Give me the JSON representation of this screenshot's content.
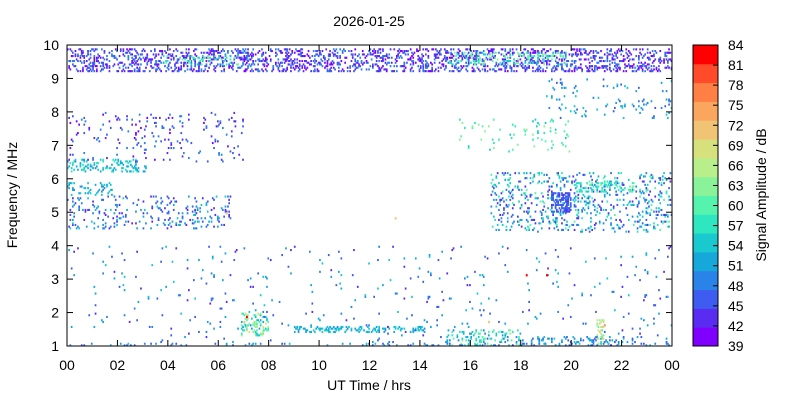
{
  "chart_data": {
    "type": "heatmap",
    "title": "2026-01-25",
    "xlabel": "UT Time / hrs",
    "ylabel": "Frequency / MHz",
    "colorbar_label": "Signal Amplitude / dB",
    "x_range": [
      0,
      24
    ],
    "y_range": [
      1,
      10
    ],
    "x_ticks": [
      "00",
      "02",
      "04",
      "06",
      "08",
      "10",
      "12",
      "14",
      "16",
      "18",
      "20",
      "22",
      "00"
    ],
    "y_ticks": [
      "1",
      "2",
      "3",
      "4",
      "5",
      "6",
      "7",
      "8",
      "9",
      "10"
    ],
    "colorbar_ticks": [
      "39",
      "42",
      "45",
      "48",
      "51",
      "54",
      "57",
      "60",
      "63",
      "66",
      "69",
      "72",
      "75",
      "78",
      "81",
      "84"
    ],
    "colorbar_range": [
      39,
      84
    ],
    "colors": [
      "#7f00ff",
      "#5a2cf2",
      "#3e5cf0",
      "#2a83e8",
      "#16a8db",
      "#1ac8d0",
      "#2ee6c0",
      "#55f3ad",
      "#8af39a",
      "#b8ef8a",
      "#d6e07c",
      "#f0c474",
      "#fba65e",
      "#ff7f44",
      "#ff4b2a",
      "#ff0000"
    ],
    "series": [
      {
        "band": [
          9.2,
          9.9
        ],
        "x": [
          0,
          24
        ],
        "density": 0.45,
        "db": [
          39,
          50
        ]
      },
      {
        "band": [
          9.4,
          9.7
        ],
        "x": [
          3.8,
          6.8
        ],
        "density": 0.25,
        "db": [
          55,
          62
        ]
      },
      {
        "band": [
          9.4,
          9.8
        ],
        "x": [
          15,
          19.8
        ],
        "density": 0.3,
        "db": [
          54,
          64
        ]
      },
      {
        "band": [
          6.2,
          6.6
        ],
        "x": [
          0,
          3.2
        ],
        "density": 0.35,
        "db": [
          50,
          58
        ]
      },
      {
        "band": [
          5.5,
          5.9
        ],
        "x": [
          0,
          1.8
        ],
        "density": 0.25,
        "db": [
          48,
          56
        ]
      },
      {
        "band": [
          4.5,
          5.5
        ],
        "x": [
          0,
          6.5
        ],
        "density": 0.18,
        "db": [
          42,
          54
        ]
      },
      {
        "band": [
          6.5,
          8
        ],
        "x": [
          0,
          7
        ],
        "density": 0.07,
        "db": [
          40,
          50
        ]
      },
      {
        "band": [
          4.4,
          6.2
        ],
        "x": [
          16.8,
          24
        ],
        "density": 0.22,
        "db": [
          42,
          60
        ]
      },
      {
        "band": [
          5,
          5.6
        ],
        "x": [
          19.2,
          20
        ],
        "density": 0.85,
        "db": [
          44,
          48
        ]
      },
      {
        "band": [
          5.6,
          5.9
        ],
        "x": [
          20.2,
          22.5
        ],
        "density": 0.4,
        "db": [
          55,
          62
        ]
      },
      {
        "band": [
          6.8,
          7.8
        ],
        "x": [
          15.5,
          20
        ],
        "density": 0.06,
        "db": [
          54,
          64
        ]
      },
      {
        "band": [
          7.8,
          9
        ],
        "x": [
          19,
          24
        ],
        "density": 0.06,
        "db": [
          45,
          56
        ]
      },
      {
        "band": [
          1.4,
          1.6
        ],
        "x": [
          9,
          14.2
        ],
        "density": 0.55,
        "db": [
          50,
          56
        ]
      },
      {
        "band": [
          1.3,
          2
        ],
        "x": [
          6.9,
          8
        ],
        "density": 0.5,
        "db": [
          52,
          70
        ]
      },
      {
        "band": [
          1,
          1.5
        ],
        "x": [
          15,
          18
        ],
        "density": 0.35,
        "db": [
          48,
          62
        ]
      },
      {
        "band": [
          1,
          1.3
        ],
        "x": [
          18,
          22.8
        ],
        "density": 0.25,
        "db": [
          45,
          55
        ]
      },
      {
        "band": [
          1,
          1.8
        ],
        "x": [
          21,
          21.3
        ],
        "density": 0.5,
        "db": [
          60,
          72
        ]
      },
      {
        "band": [
          1,
          4
        ],
        "x": [
          0,
          24
        ],
        "density": 0.025,
        "db": [
          42,
          55
        ]
      },
      {
        "band": [
          1,
          1.1
        ],
        "x": [
          0,
          24
        ],
        "density": 0.12,
        "db": [
          45,
          55
        ]
      }
    ],
    "hotspots": [
      {
        "x": 7.1,
        "y": 1.85,
        "db": 84
      },
      {
        "x": 7.0,
        "y": 1.7,
        "db": 72
      },
      {
        "x": 18.2,
        "y": 3.1,
        "db": 84
      },
      {
        "x": 19.0,
        "y": 3.1,
        "db": 84
      },
      {
        "x": 16.7,
        "y": 1.7,
        "db": 72
      },
      {
        "x": 21.3,
        "y": 1.6,
        "db": 75
      },
      {
        "x": 6.3,
        "y": 4.95,
        "db": 72
      },
      {
        "x": 13,
        "y": 4.8,
        "db": 72
      }
    ]
  }
}
